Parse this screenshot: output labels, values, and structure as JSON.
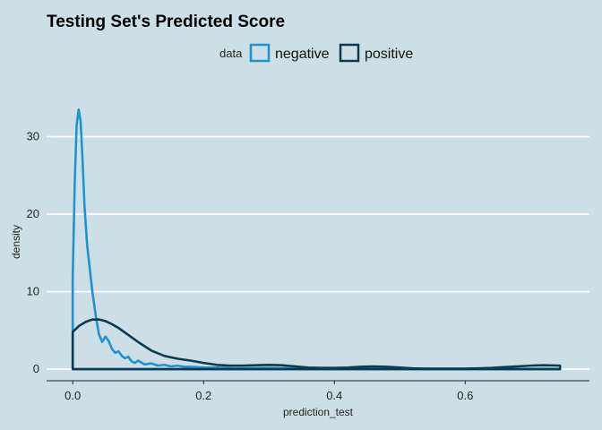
{
  "chart_data": {
    "type": "area",
    "title": "Testing Set's Predicted Score",
    "xlabel": "prediction_test",
    "ylabel": "density",
    "xlim": [
      -0.04,
      0.79
    ],
    "ylim": [
      -1.5,
      37
    ],
    "x_ticks": [
      0.0,
      0.2,
      0.4,
      0.6
    ],
    "x_tick_labels": [
      "0.0",
      "0.2",
      "0.4",
      "0.6"
    ],
    "y_ticks": [
      0,
      10,
      20,
      30
    ],
    "y_tick_labels": [
      "0",
      "10",
      "20",
      "30"
    ],
    "grid": true,
    "legend": {
      "title": "data",
      "position": "top"
    },
    "series": [
      {
        "name": "negative",
        "color": "#1f93cf",
        "x": [
          0.0,
          0.003,
          0.006,
          0.009,
          0.012,
          0.015,
          0.018,
          0.022,
          0.026,
          0.03,
          0.035,
          0.04,
          0.045,
          0.05,
          0.055,
          0.06,
          0.065,
          0.07,
          0.075,
          0.08,
          0.085,
          0.09,
          0.095,
          0.1,
          0.11,
          0.12,
          0.13,
          0.14,
          0.15,
          0.16,
          0.17,
          0.18,
          0.2,
          0.22,
          0.25,
          0.3,
          0.35,
          0.4,
          0.5,
          0.6,
          0.7,
          0.745
        ],
        "values": [
          12.0,
          24.0,
          31.5,
          33.5,
          32.0,
          27.0,
          21.0,
          16.0,
          13.0,
          10.0,
          7.0,
          4.5,
          3.5,
          4.2,
          3.6,
          2.6,
          2.1,
          2.3,
          1.7,
          1.4,
          1.6,
          1.0,
          0.8,
          1.1,
          0.6,
          0.75,
          0.45,
          0.55,
          0.35,
          0.45,
          0.3,
          0.3,
          0.2,
          0.2,
          0.12,
          0.15,
          0.1,
          0.1,
          0.05,
          0.05,
          0.04,
          0.03
        ]
      },
      {
        "name": "positive",
        "color": "#0d3a4f",
        "x": [
          0.0,
          0.01,
          0.02,
          0.03,
          0.04,
          0.05,
          0.06,
          0.07,
          0.08,
          0.1,
          0.12,
          0.14,
          0.16,
          0.18,
          0.2,
          0.22,
          0.24,
          0.26,
          0.28,
          0.3,
          0.32,
          0.34,
          0.36,
          0.38,
          0.4,
          0.42,
          0.44,
          0.46,
          0.48,
          0.5,
          0.52,
          0.54,
          0.56,
          0.58,
          0.6,
          0.62,
          0.64,
          0.66,
          0.68,
          0.7,
          0.72,
          0.745
        ],
        "values": [
          4.8,
          5.6,
          6.1,
          6.4,
          6.4,
          6.2,
          5.8,
          5.3,
          4.7,
          3.5,
          2.4,
          1.7,
          1.35,
          1.1,
          0.8,
          0.55,
          0.45,
          0.45,
          0.5,
          0.55,
          0.5,
          0.35,
          0.2,
          0.15,
          0.15,
          0.2,
          0.3,
          0.35,
          0.3,
          0.2,
          0.1,
          0.05,
          0.05,
          0.05,
          0.05,
          0.1,
          0.15,
          0.25,
          0.35,
          0.45,
          0.5,
          0.45
        ]
      }
    ]
  }
}
